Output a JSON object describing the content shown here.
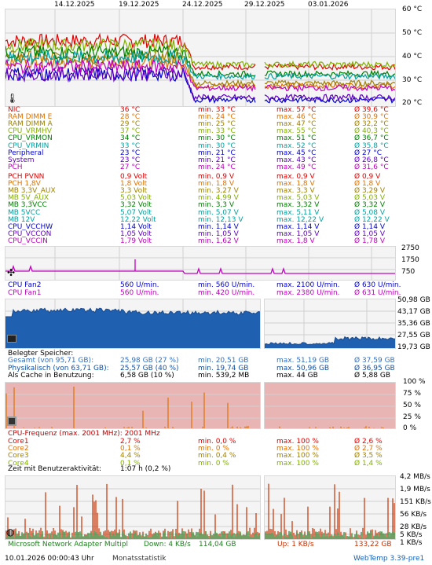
{
  "dates": [
    "14.12.2025",
    "19.12.2025",
    "24.12.2025",
    "29.12.2025",
    "03.01.2026"
  ],
  "temp_axis": [
    "60 °C",
    "50 °C",
    "40 °C",
    "30 °C",
    "20 °C"
  ],
  "temps": [
    {
      "name": "NIC",
      "cur": "36 °C",
      "min": "min. 33 °C",
      "max": "max. 57 °C",
      "avg": "Ø 39,6 °C",
      "color": "#e00000"
    },
    {
      "name": "RAM DIMM E",
      "cur": "28 °C",
      "min": "min. 24 °C",
      "max": "max. 46 °C",
      "avg": "Ø 30,9 °C",
      "color": "#e07000"
    },
    {
      "name": "RAM DIMM A",
      "cur": "29 °C",
      "min": "min. 25 °C",
      "max": "max. 47 °C",
      "avg": "Ø 32,2 °C",
      "color": "#a08000"
    },
    {
      "name": "CPU_VRMHV",
      "cur": "37 °C",
      "min": "min. 33 °C",
      "max": "max. 55 °C",
      "avg": "Ø 40,3 °C",
      "color": "#80b000"
    },
    {
      "name": "CPU_VRMON",
      "cur": "34 °C",
      "min": "min. 30 °C",
      "max": "max. 51 °C",
      "avg": "Ø 36,7 °C",
      "color": "#008000"
    },
    {
      "name": "CPU_VRMIN",
      "cur": "33 °C",
      "min": "min. 30 °C",
      "max": "max. 52 °C",
      "avg": "Ø 35,8 °C",
      "color": "#00a0a0"
    },
    {
      "name": "Peripheral",
      "cur": "23 °C",
      "min": "min. 21 °C",
      "max": "max. 45 °C",
      "avg": "Ø 27 °C",
      "color": "#0000d0"
    },
    {
      "name": "System",
      "cur": "23 °C",
      "min": "min. 21 °C",
      "max": "max. 43 °C",
      "avg": "Ø 26,8 °C",
      "color": "#6000c0"
    },
    {
      "name": "PCH",
      "cur": "27 °C",
      "min": "min. 24 °C",
      "max": "max. 49 °C",
      "avg": "Ø 31,6 °C",
      "color": "#c000c0"
    }
  ],
  "volts": [
    {
      "name": "PCH PVNN",
      "cur": "0,9 Volt",
      "min": "min. 0,9 V",
      "max": "max. 0,9 V",
      "avg": "Ø 0,9 V",
      "color": "#e00000"
    },
    {
      "name": "PCH 1,8V",
      "cur": "1,8 Volt",
      "min": "min. 1,8 V",
      "max": "max. 1,8 V",
      "avg": "Ø 1,8 V",
      "color": "#e07000"
    },
    {
      "name": "MB 3,3V_AUX",
      "cur": "3,3 Volt",
      "min": "min. 3,27 V",
      "max": "max. 3,3 V",
      "avg": "Ø 3,29 V",
      "color": "#a08000"
    },
    {
      "name": "MB 5V_AUX",
      "cur": "5,03 Volt",
      "min": "min. 4,99 V",
      "max": "max. 5,03 V",
      "avg": "Ø 5,03 V",
      "color": "#80b000"
    },
    {
      "name": "MB 3,3VCC",
      "cur": "3,32 Volt",
      "min": "min. 3,3 V",
      "max": "max. 3,32 V",
      "avg": "Ø 3,32 V",
      "color": "#008000"
    },
    {
      "name": "MB 5VCC",
      "cur": "5,07 Volt",
      "min": "min. 5,07 V",
      "max": "max. 5,11 V",
      "avg": "Ø 5,08 V",
      "color": "#00a0a0"
    },
    {
      "name": "MB 12V",
      "cur": "12,22 Volt",
      "min": "min. 12,13 V",
      "max": "max. 12,22 V",
      "avg": "Ø 12,22 V",
      "color": "#00a0a0"
    },
    {
      "name": "CPU_VCCHW",
      "cur": "1,14 Volt",
      "min": "min. 1,14 V",
      "max": "max. 1,14 V",
      "avg": "Ø 1,14 V",
      "color": "#0000d0"
    },
    {
      "name": "CPU_VCCON",
      "cur": "1,05 Volt",
      "min": "min. 1,05 V",
      "max": "max. 1,05 V",
      "avg": "Ø 1,05 V",
      "color": "#6000c0"
    },
    {
      "name": "CPU_VCCIN",
      "cur": "1,79 Volt",
      "min": "min. 1,62 V",
      "max": "max. 1,8 V",
      "avg": "Ø 1,78 V",
      "color": "#c000c0"
    }
  ],
  "fan_axis": [
    "2750",
    "1750",
    "750"
  ],
  "fans": [
    {
      "name": "CPU Fan2",
      "cur": "560 U/min.",
      "min": "min. 560 U/min.",
      "max": "max. 2100 U/min.",
      "avg": "Ø 630 U/min.",
      "color": "#0000d0"
    },
    {
      "name": "CPU Fan1",
      "cur": "560 U/min.",
      "min": "min. 420 U/min.",
      "max": "max. 2380 U/min.",
      "avg": "Ø 631 U/min.",
      "color": "#c000c0"
    }
  ],
  "mem_axis": [
    "50,98 GB",
    "43,17 GB",
    "35,36 GB",
    "27,55 GB",
    "19,73 GB"
  ],
  "mem": {
    "header": "Belegter Speicher:",
    "rows": [
      {
        "name": "Gesamt (von 95,71 GB):",
        "cur": "25,98 GB (27 %)",
        "min": "min. 20,51 GB",
        "max": "max. 51,19 GB",
        "avg": "Ø 37,59 GB",
        "color": "#3070c0"
      },
      {
        "name": "Physikalisch (von 63,71 GB):",
        "cur": "25,57 GB (40 %)",
        "min": "min. 19,74 GB",
        "max": "max. 50,96 GB",
        "avg": "Ø 36,95 GB",
        "color": "#1050a0"
      },
      {
        "name": "Als Cache in Benutzung:",
        "cur": "6,58 GB (10 %)",
        "min": "min. 539,2 MB",
        "max": "max. 44 GB",
        "avg": "Ø 5,88 GB",
        "color": "#000000"
      }
    ]
  },
  "cpu_axis": [
    "100 %",
    "75 %",
    "50 %",
    "25 %",
    "0 %"
  ],
  "cpu": {
    "header": "CPU-Frequenz (max. 2001 MHz): 2001 MHz",
    "cores": [
      {
        "name": "Core1",
        "cur": "2,7 %",
        "min": "min. 0,0 %",
        "max": "max. 100 %",
        "avg": "Ø 2,6 %",
        "color": "#e00000"
      },
      {
        "name": "Core2",
        "cur": "0,1 %",
        "min": "min. 0 %",
        "max": "max. 100 %",
        "avg": "Ø 2,7 %",
        "color": "#e07000"
      },
      {
        "name": "Core3",
        "cur": "4,4 %",
        "min": "min. 0,4 %",
        "max": "max. 100 %",
        "avg": "Ø 3,5 %",
        "color": "#a08000"
      },
      {
        "name": "Core4",
        "cur": "0,1 %",
        "min": "min. 0 %",
        "max": "max. 100 %",
        "avg": "Ø 1,4 %",
        "color": "#80b000"
      }
    ],
    "activity_label": "Zeit mit Benutzeraktivität:",
    "activity_value": "1:07 h (0,2 %)"
  },
  "net_axis": [
    "4,2 MB/s",
    "1,9 MB/s",
    "151 KB/s",
    "56 KB/s",
    "28 KB/s",
    "5 KB/s",
    "1 KB/s"
  ],
  "net": {
    "adapter": "Microsoft Network Adapter Multipl",
    "down": "Down: 4 KB/s",
    "down_total": "114,04 GB",
    "up": "Up: 1 KB/s",
    "up_total": "133,22 GB"
  },
  "footer": {
    "timestamp": "10.01.2026 00:00:43 Uhr",
    "mode": "Monatsstatistik",
    "version": "WebTemp 3.39-pre1"
  },
  "colors": {
    "grid": "#d0d0d0",
    "panel_bg": "#f4f4f4",
    "cpu_bg": "#e8b4b4",
    "mem_fill": "#2060b0",
    "net_down": "#c83000",
    "net_up": "#208020"
  }
}
